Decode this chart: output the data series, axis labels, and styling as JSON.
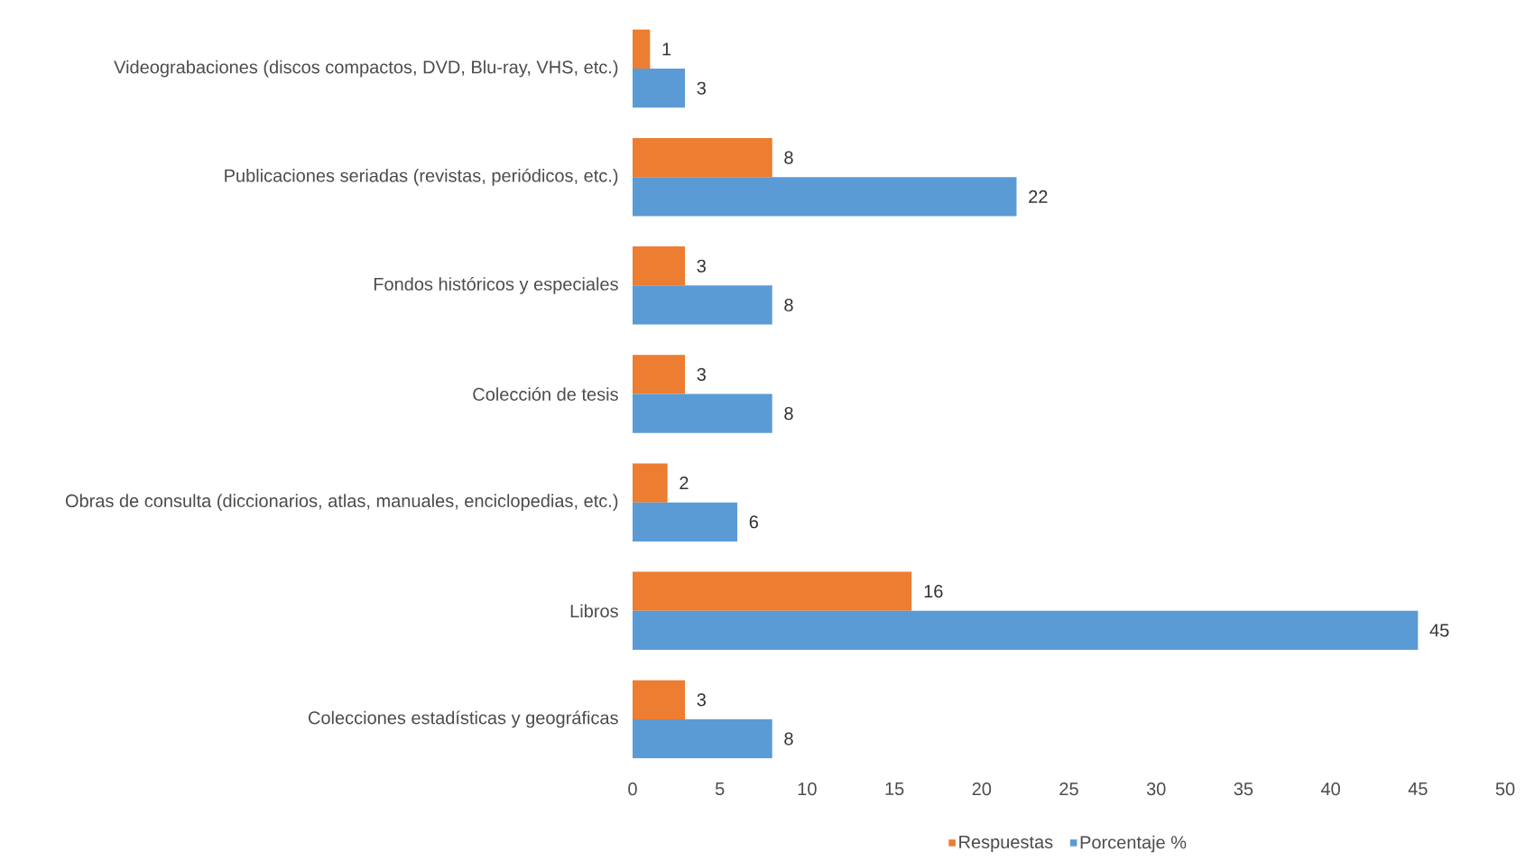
{
  "chart_data": {
    "type": "bar",
    "orientation": "horizontal",
    "categories": [
      "Videograbaciones (discos compactos, DVD, Blu-ray, VHS, etc.)",
      "Publicaciones seriadas (revistas, periódicos, etc.)",
      "Fondos históricos y especiales",
      "Colección de tesis",
      "Obras de consulta (diccionarios, atlas, manuales, enciclopedias, etc.)",
      "Libros",
      "Colecciones estadísticas y geográficas"
    ],
    "series": [
      {
        "name": "Respuestas",
        "color": "#ed7d31",
        "values": [
          1,
          8,
          3,
          3,
          2,
          16,
          3
        ]
      },
      {
        "name": "Porcentaje %",
        "color": "#5b9bd5",
        "values": [
          3,
          22,
          8,
          8,
          6,
          45,
          8
        ]
      }
    ],
    "xlim": [
      0,
      50
    ],
    "xticks": [
      0,
      5,
      10,
      15,
      20,
      25,
      30,
      35,
      40,
      45,
      50
    ],
    "data_labels": true,
    "legend": "bottom",
    "grid": false
  }
}
